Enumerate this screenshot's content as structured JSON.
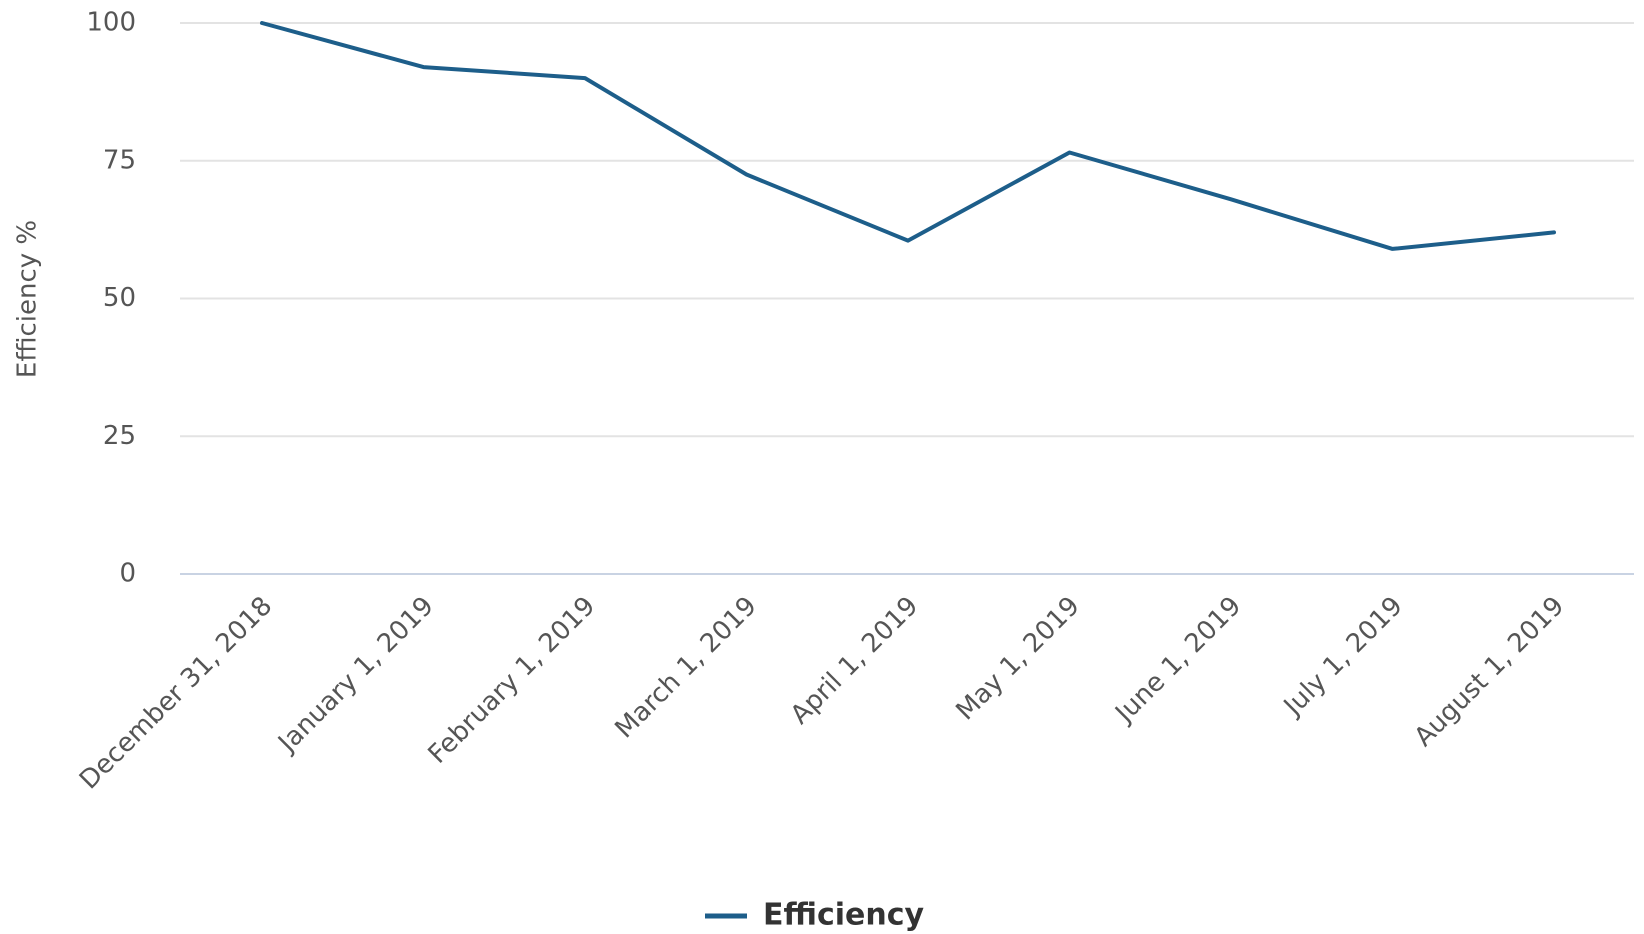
{
  "chart_data": {
    "type": "line",
    "y_label": "Efficiency %",
    "categories": [
      "December 31, 2018",
      "January 1, 2019",
      "February 1, 2019",
      "March 1, 2019",
      "April 1, 2019",
      "May 1, 2019",
      "June 1, 2019",
      "July 1, 2019",
      "August 1, 2019"
    ],
    "series": [
      {
        "name": "Efficiency",
        "color": "#1d5e8a",
        "values": [
          100,
          92,
          90,
          72.5,
          60.5,
          76.5,
          68,
          59,
          62
        ]
      }
    ],
    "ylim": [
      0,
      100
    ],
    "yticks": [
      0,
      25,
      50,
      75,
      100
    ],
    "grid": true,
    "legend": "bottom"
  }
}
